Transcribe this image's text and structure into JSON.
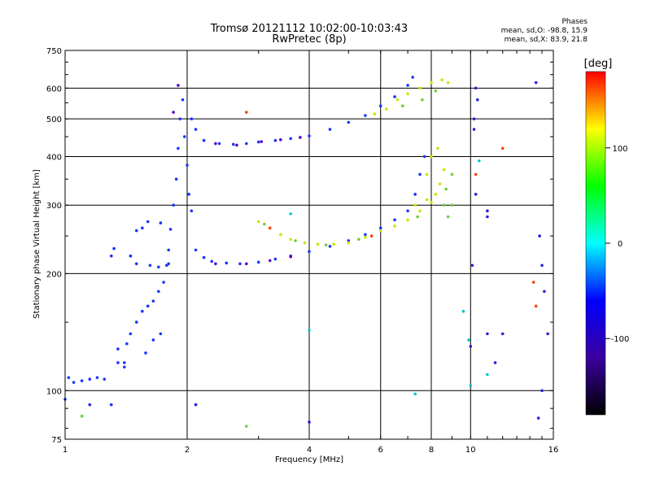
{
  "header": {
    "title_line1": "Tromsø 20121112 10:02:00-10:03:43",
    "title_line2": "RwPretec (8p)"
  },
  "phase_box": {
    "title": "Phases",
    "line1": "mean, sd,O: -98.8, 15.9",
    "line2": "mean, sd,X: 83.9, 21.8"
  },
  "chart_data": {
    "type": "scatter",
    "title": "Tromsø 20121112 10:02:00-10:03:43",
    "subtitle": "RwPretec (8p)",
    "xlabel": "Frequency [MHz]",
    "ylabel": "Stationary phase Virtual Height [km]",
    "x_scale": "log",
    "y_scale": "log",
    "xlim": [
      1,
      16
    ],
    "ylim": [
      75,
      750
    ],
    "x_ticks": [
      1,
      2,
      4,
      6,
      8,
      10,
      16
    ],
    "y_ticks": [
      75,
      100,
      200,
      300,
      400,
      500,
      600,
      750
    ],
    "grid": true,
    "colorbar": {
      "label": "[deg]",
      "range": [
        -180,
        180
      ],
      "ticks": [
        100,
        0,
        -100
      ],
      "colors": [
        "#000000",
        "#3b00a0",
        "#0000ff",
        "#00ffff",
        "#00ff00",
        "#ffff00",
        "#ff0000"
      ]
    },
    "series": [
      {
        "points": [
          [
            1.0,
            95
          ],
          [
            1.02,
            108
          ],
          [
            1.05,
            105
          ],
          [
            1.1,
            106
          ],
          [
            1.15,
            107
          ],
          [
            1.2,
            108
          ],
          [
            1.25,
            107
          ],
          [
            1.3,
            92
          ],
          [
            1.35,
            118
          ],
          [
            1.4,
            115
          ],
          [
            1.42,
            132
          ],
          [
            1.45,
            140
          ],
          [
            1.5,
            150
          ],
          [
            1.55,
            160
          ],
          [
            1.6,
            165
          ],
          [
            1.65,
            170
          ],
          [
            1.7,
            180
          ],
          [
            1.75,
            190
          ],
          [
            1.78,
            210
          ],
          [
            1.8,
            230
          ],
          [
            1.82,
            260
          ],
          [
            1.85,
            300
          ],
          [
            1.88,
            350
          ],
          [
            1.9,
            420
          ],
          [
            1.92,
            500
          ],
          [
            1.95,
            560
          ],
          [
            1.97,
            450
          ],
          [
            2.0,
            380
          ],
          [
            2.02,
            320
          ],
          [
            2.05,
            290
          ],
          [
            1.72,
            270
          ],
          [
            1.6,
            272
          ],
          [
            1.55,
            262
          ],
          [
            1.5,
            258
          ],
          [
            1.32,
            232
          ],
          [
            1.3,
            222
          ],
          [
            1.45,
            222
          ],
          [
            1.5,
            212
          ],
          [
            1.62,
            210
          ],
          [
            1.7,
            208
          ],
          [
            1.8,
            212
          ],
          [
            2.1,
            230
          ],
          [
            2.2,
            220
          ],
          [
            2.3,
            215
          ],
          [
            2.5,
            213
          ],
          [
            2.7,
            212
          ],
          [
            3.0,
            214
          ],
          [
            3.3,
            218
          ],
          [
            3.6,
            222
          ],
          [
            4.0,
            228
          ],
          [
            4.5,
            235
          ],
          [
            5.0,
            243
          ],
          [
            5.5,
            252
          ],
          [
            6.0,
            262
          ],
          [
            6.5,
            275
          ],
          [
            7.0,
            290
          ],
          [
            7.3,
            320
          ],
          [
            7.5,
            360
          ],
          [
            7.7,
            400
          ],
          [
            2.05,
            500
          ],
          [
            2.1,
            470
          ],
          [
            2.2,
            440
          ],
          [
            2.4,
            432
          ],
          [
            2.6,
            430
          ],
          [
            2.8,
            432
          ],
          [
            3.0,
            436
          ],
          [
            3.3,
            440
          ],
          [
            3.6,
            445
          ],
          [
            4.0,
            452
          ],
          [
            4.5,
            470
          ],
          [
            5.0,
            490
          ],
          [
            5.5,
            510
          ],
          [
            6.0,
            540
          ],
          [
            6.5,
            570
          ],
          [
            7.0,
            610
          ],
          [
            7.2,
            640
          ],
          [
            1.35,
            128
          ],
          [
            1.4,
            118
          ],
          [
            1.58,
            125
          ],
          [
            1.65,
            135
          ],
          [
            1.72,
            140
          ]
        ],
        "color": "#1a33ff"
      },
      {
        "points": [
          [
            2.35,
            432
          ],
          [
            2.65,
            428
          ],
          [
            3.05,
            437
          ],
          [
            3.4,
            442
          ],
          [
            3.8,
            448
          ],
          [
            2.35,
            212
          ],
          [
            2.8,
            212
          ],
          [
            3.2,
            216
          ],
          [
            3.6,
            221
          ],
          [
            1.85,
            520
          ],
          [
            1.9,
            610
          ]
        ],
        "color": "#5500c8"
      },
      {
        "points": [
          [
            3.0,
            272
          ],
          [
            3.2,
            262
          ],
          [
            3.4,
            252
          ],
          [
            3.6,
            245
          ],
          [
            3.9,
            240
          ],
          [
            4.2,
            238
          ],
          [
            4.6,
            238
          ],
          [
            5.0,
            240
          ],
          [
            5.5,
            248
          ],
          [
            6.0,
            258
          ],
          [
            6.5,
            265
          ],
          [
            7.0,
            275
          ],
          [
            7.5,
            290
          ],
          [
            8.0,
            305
          ],
          [
            8.2,
            320
          ],
          [
            8.4,
            340
          ],
          [
            8.6,
            370
          ],
          [
            7.3,
            300
          ],
          [
            7.8,
            310
          ],
          [
            5.8,
            515
          ],
          [
            6.2,
            530
          ],
          [
            6.6,
            560
          ],
          [
            7.0,
            580
          ],
          [
            7.5,
            600
          ],
          [
            8.0,
            620
          ],
          [
            8.5,
            630
          ],
          [
            8.8,
            620
          ],
          [
            7.8,
            360
          ],
          [
            8.0,
            400
          ],
          [
            8.3,
            420
          ]
        ],
        "color": "#c8e600"
      },
      {
        "points": [
          [
            3.1,
            268
          ],
          [
            3.7,
            243
          ],
          [
            4.4,
            237
          ],
          [
            5.3,
            245
          ],
          [
            7.4,
            280
          ],
          [
            8.6,
            300
          ],
          [
            8.7,
            330
          ],
          [
            9.0,
            360
          ],
          [
            6.8,
            540
          ],
          [
            7.6,
            560
          ],
          [
            8.2,
            590
          ],
          [
            1.1,
            86
          ],
          [
            2.8,
            81
          ],
          [
            8.8,
            280
          ],
          [
            9.0,
            300
          ]
        ],
        "color": "#6ccf3a"
      },
      {
        "points": [
          [
            2.8,
            520
          ],
          [
            3.2,
            262
          ],
          [
            5.7,
            250
          ],
          [
            10.3,
            360
          ],
          [
            11.0,
            290
          ],
          [
            12.0,
            420
          ],
          [
            14.3,
            190
          ],
          [
            14.5,
            165
          ]
        ],
        "color": "#ff4000"
      },
      {
        "points": [
          [
            3.6,
            285
          ],
          [
            7.3,
            98
          ],
          [
            10.0,
            103
          ],
          [
            9.6,
            160
          ],
          [
            9.9,
            135
          ],
          [
            11.0,
            110
          ],
          [
            4.0,
            143
          ],
          [
            10.5,
            390
          ]
        ],
        "color": "#00c8c8"
      },
      {
        "points": [
          [
            10.2,
            500
          ],
          [
            10.2,
            470
          ],
          [
            10.1,
            210
          ],
          [
            10.3,
            320
          ],
          [
            11.0,
            290
          ],
          [
            11.0,
            280
          ],
          [
            10.0,
            130
          ],
          [
            10.3,
            600
          ],
          [
            10.4,
            560
          ],
          [
            11.0,
            140
          ],
          [
            12.0,
            140
          ],
          [
            11.5,
            118
          ],
          [
            14.5,
            620
          ],
          [
            14.8,
            250
          ],
          [
            15.0,
            210
          ],
          [
            15.2,
            180
          ],
          [
            15.5,
            140
          ],
          [
            15.0,
            100
          ],
          [
            14.7,
            85
          ],
          [
            4.0,
            83
          ],
          [
            2.1,
            92
          ],
          [
            1.15,
            92
          ]
        ],
        "color": "#2222dd"
      }
    ]
  }
}
